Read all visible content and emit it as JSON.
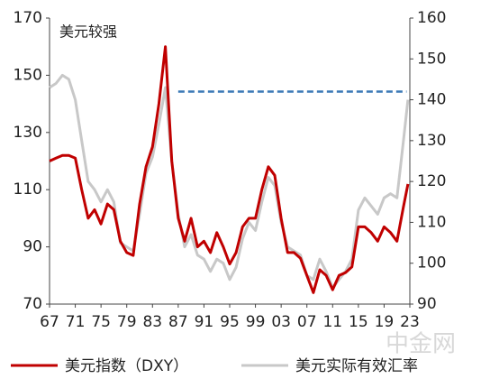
{
  "chart_data": {
    "type": "line",
    "annotation": "美元较强",
    "watermark": "中金网",
    "x": [
      1967,
      1968,
      1969,
      1970,
      1971,
      1972,
      1973,
      1974,
      1975,
      1976,
      1977,
      1978,
      1979,
      1980,
      1981,
      1982,
      1983,
      1984,
      1985,
      1986,
      1987,
      1988,
      1989,
      1990,
      1991,
      1992,
      1993,
      1994,
      1995,
      1996,
      1997,
      1998,
      1999,
      2000,
      2001,
      2002,
      2003,
      2004,
      2005,
      2006,
      2007,
      2008,
      2009,
      2010,
      2011,
      2012,
      2013,
      2014,
      2015,
      2016,
      2017,
      2018,
      2019,
      2020,
      2021,
      2022,
      2022.7
    ],
    "series": [
      {
        "name": "美元指数（DXY）",
        "color": "#c00000",
        "axis": "y",
        "values": [
          120,
          121,
          122,
          122,
          121,
          110,
          100,
          103,
          98,
          105,
          103,
          92,
          88,
          87,
          105,
          118,
          125,
          140,
          160,
          120,
          100,
          92,
          100,
          90,
          92,
          88,
          95,
          90,
          84,
          88,
          97,
          100,
          100,
          110,
          118,
          115,
          100,
          88,
          88,
          86,
          80,
          74,
          82,
          80,
          75,
          80,
          81,
          83,
          97,
          97,
          95,
          92,
          97,
          95,
          92,
          104,
          112
        ]
      },
      {
        "name": "美元实际有效汇率",
        "color": "#c8c8c8",
        "axis": "y2",
        "values": [
          143,
          144,
          146,
          145,
          140,
          130,
          120,
          118,
          115,
          118,
          115,
          105,
          104,
          103,
          112,
          122,
          126,
          134,
          143,
          125,
          112,
          104,
          107,
          102,
          101,
          98,
          101,
          100,
          96,
          99,
          106,
          110,
          108,
          115,
          121,
          119,
          110,
          104,
          103,
          102,
          97,
          96,
          101,
          98,
          94,
          96,
          98,
          101,
          113,
          116,
          114,
          112,
          116,
          117,
          116,
          130,
          140
        ]
      }
    ],
    "reference_line": {
      "axis": "y2",
      "value": 142,
      "x": [
        1987,
        2022.5
      ],
      "color": "#3a78b5"
    },
    "xlim": [
      1967,
      2023
    ],
    "xticks": [
      {
        "value": 1967,
        "label": "67"
      },
      {
        "value": 1971,
        "label": "71"
      },
      {
        "value": 1975,
        "label": "75"
      },
      {
        "value": 1979,
        "label": "79"
      },
      {
        "value": 1983,
        "label": "83"
      },
      {
        "value": 1987,
        "label": "87"
      },
      {
        "value": 1991,
        "label": "91"
      },
      {
        "value": 1995,
        "label": "95"
      },
      {
        "value": 1999,
        "label": "99"
      },
      {
        "value": 2003,
        "label": "03"
      },
      {
        "value": 2007,
        "label": "07"
      },
      {
        "value": 2011,
        "label": "11"
      },
      {
        "value": 2015,
        "label": "15"
      },
      {
        "value": 2019,
        "label": "19"
      },
      {
        "value": 2023,
        "label": "23"
      }
    ],
    "ylim": [
      70,
      170
    ],
    "yticks": [
      70,
      90,
      110,
      130,
      150,
      170
    ],
    "y2lim": [
      90,
      160
    ],
    "y2ticks": [
      90,
      100,
      110,
      120,
      130,
      140,
      150,
      160
    ]
  }
}
